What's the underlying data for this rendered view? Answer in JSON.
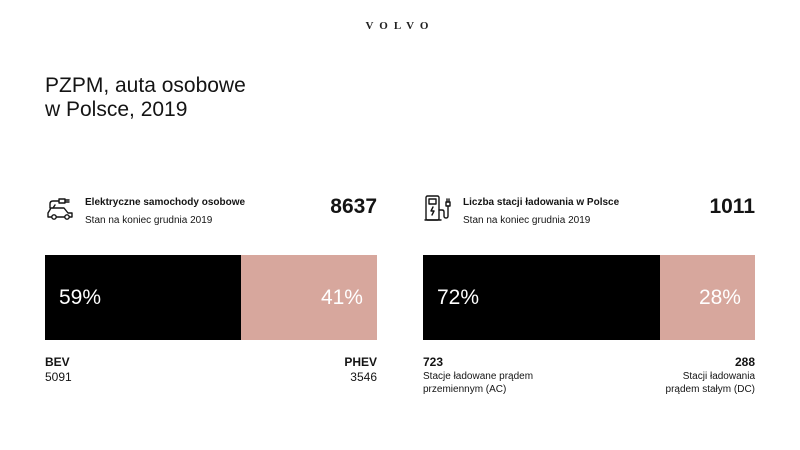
{
  "brand": "VOLVO",
  "title": "PZPM, auta osobowe\nw Polsce, 2019",
  "chart_data": [
    {
      "type": "bar",
      "orientation": "horizontal-stacked",
      "title": "Elektryczne samochody osobowe",
      "subtitle": "Stan na koniec grudnia 2019",
      "total": "8637",
      "icon": "electric-car-icon",
      "series": [
        {
          "name": "BEV",
          "value": 5091,
          "percent": 59,
          "percent_label": "59%",
          "value_label": "5091",
          "color": "#000000"
        },
        {
          "name": "PHEV",
          "value": 3546,
          "percent": 41,
          "percent_label": "41%",
          "value_label": "3546",
          "color": "#d7a79d"
        }
      ]
    },
    {
      "type": "bar",
      "orientation": "horizontal-stacked",
      "title": "Liczba stacji ładowania w Polsce",
      "subtitle": "Stan na koniec grudnia 2019",
      "total": "1011",
      "icon": "charging-station-icon",
      "series": [
        {
          "name": "",
          "value": 723,
          "percent": 72,
          "percent_label": "72%",
          "value_label": "723",
          "description": "Stacje ładowane prądem\nprzemiennym (AC)",
          "color": "#000000"
        },
        {
          "name": "",
          "value": 288,
          "percent": 28,
          "percent_label": "28%",
          "value_label": "288",
          "description": "Stacji ładowania\nprądem stałym (DC)",
          "color": "#d7a79d"
        }
      ]
    }
  ]
}
